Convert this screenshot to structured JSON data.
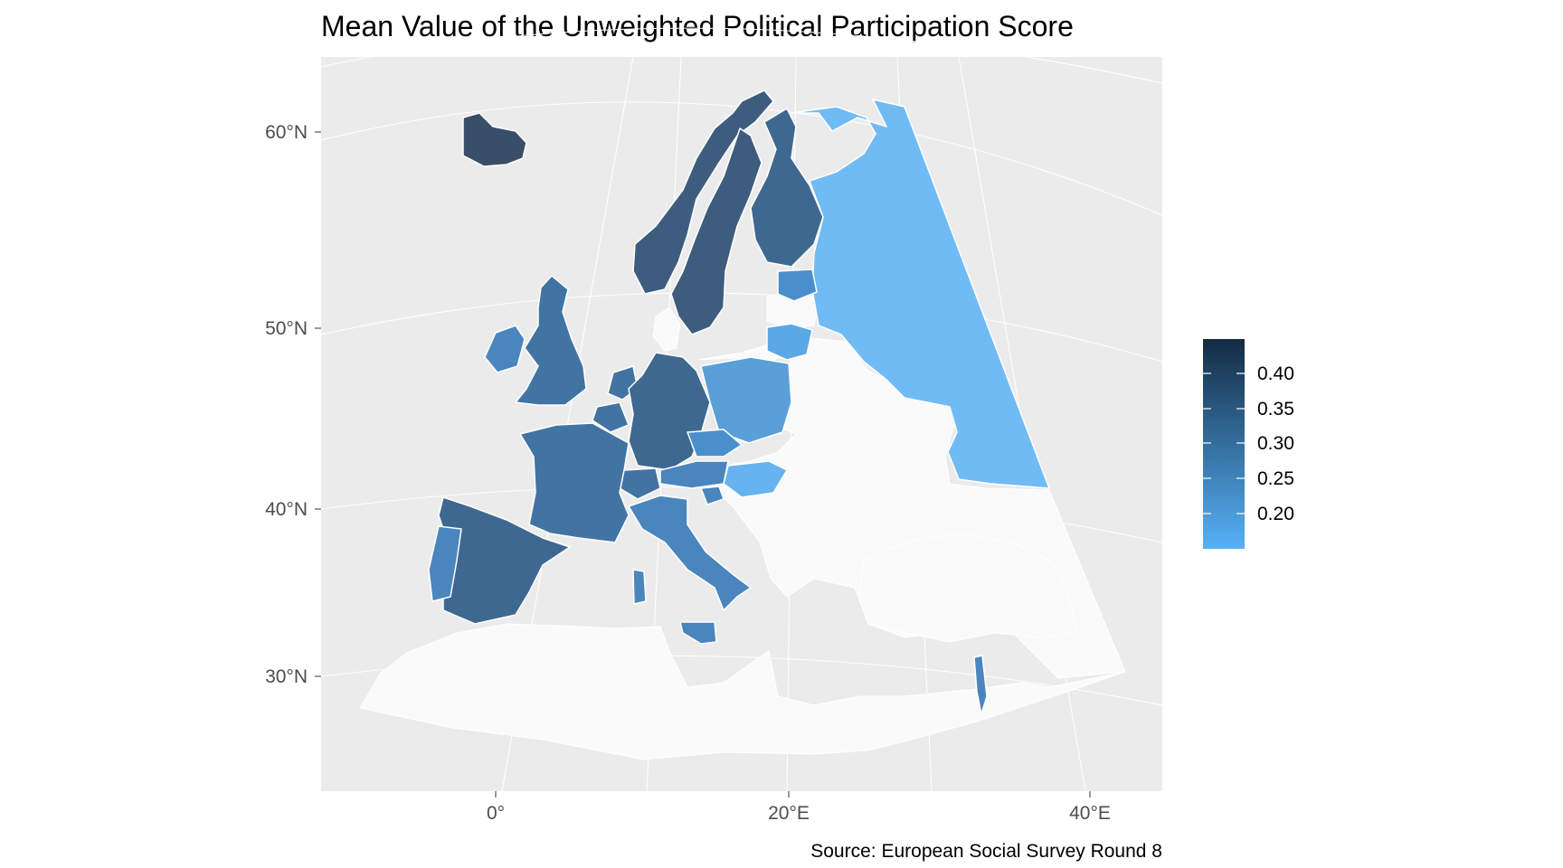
{
  "title": "Mean Value of the Unweighted Political Participation Score",
  "caption": "Source: European Social Survey Round 8",
  "colors": {
    "panel_background": "#ebebeb",
    "gridline": "#ffffff",
    "no_data": "#fafafa",
    "country_border": "#ffffff",
    "scale_low": "#56b1f7",
    "scale_high": "#132b43"
  },
  "legend": {
    "type": "continuous colorbar",
    "range": [
      0.15,
      0.45
    ],
    "breaks": [
      0.4,
      0.35,
      0.3,
      0.25,
      0.2
    ],
    "labels": [
      "0.40",
      "0.35",
      "0.30",
      "0.25",
      "0.20"
    ]
  },
  "axes": {
    "x_ticks": [
      "0°",
      "20°E",
      "40°E"
    ],
    "y_ticks": [
      "60°N",
      "50°N",
      "40°N",
      "30°N"
    ]
  },
  "chart_data": {
    "type": "choropleth map",
    "variable": "Mean Value of the Unweighted Political Participation Score",
    "regions": [
      {
        "name": "Iceland",
        "value": 0.38
      },
      {
        "name": "Sweden",
        "value": 0.34
      },
      {
        "name": "Norway",
        "value": 0.34
      },
      {
        "name": "Finland",
        "value": 0.3
      },
      {
        "name": "Estonia",
        "value": 0.23
      },
      {
        "name": "Lithuania",
        "value": 0.21
      },
      {
        "name": "Russia",
        "value": 0.16
      },
      {
        "name": "Ireland",
        "value": 0.25
      },
      {
        "name": "United Kingdom",
        "value": 0.28
      },
      {
        "name": "Netherlands",
        "value": 0.29
      },
      {
        "name": "Belgium",
        "value": 0.28
      },
      {
        "name": "France",
        "value": 0.29
      },
      {
        "name": "Germany",
        "value": 0.31
      },
      {
        "name": "Poland",
        "value": 0.23
      },
      {
        "name": "Czechia",
        "value": 0.24
      },
      {
        "name": "Austria",
        "value": 0.27
      },
      {
        "name": "Switzerland",
        "value": 0.28
      },
      {
        "name": "Slovenia",
        "value": 0.25
      },
      {
        "name": "Hungary",
        "value": 0.18
      },
      {
        "name": "Italy",
        "value": 0.25
      },
      {
        "name": "Spain",
        "value": 0.31
      },
      {
        "name": "Portugal",
        "value": 0.24
      },
      {
        "name": "Israel",
        "value": 0.25
      }
    ]
  }
}
